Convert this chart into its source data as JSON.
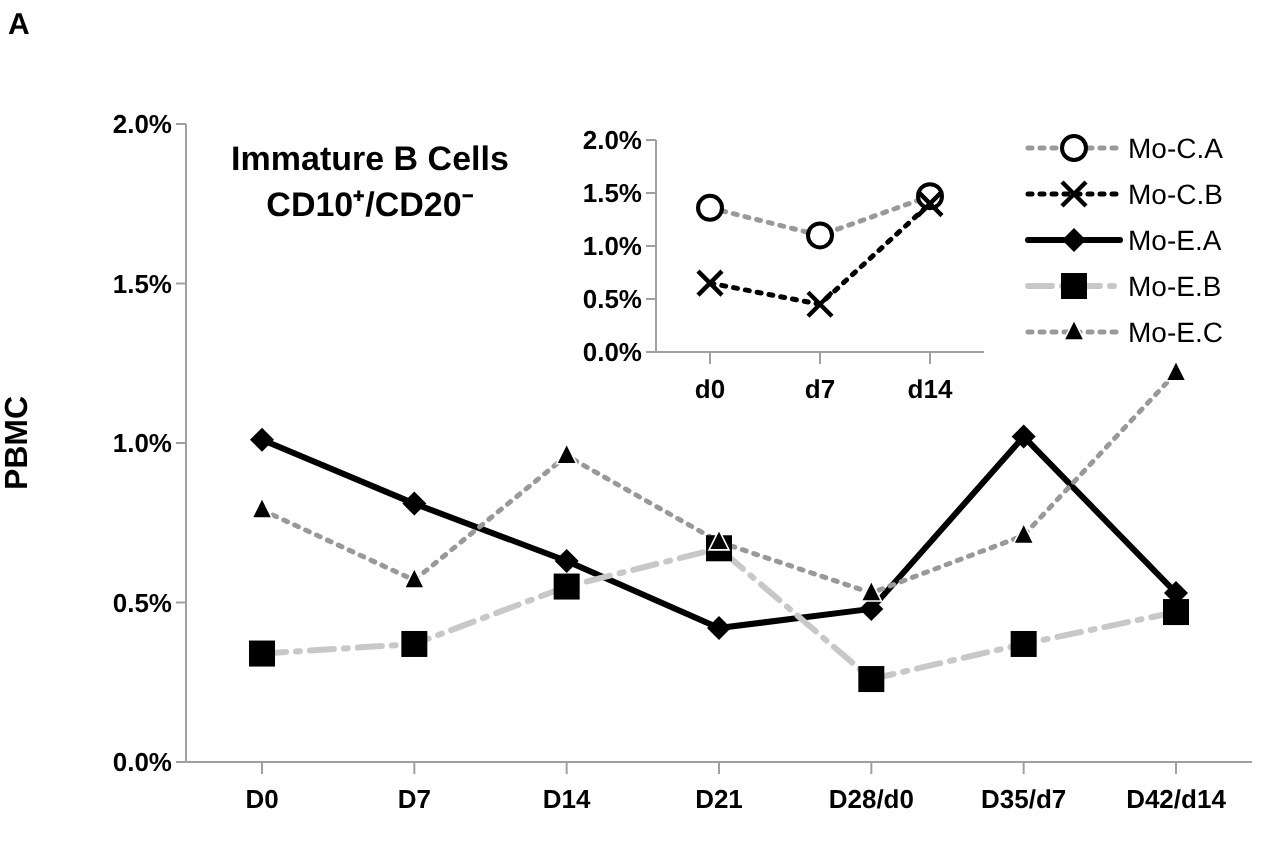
{
  "chart_data": [
    {
      "type": "line",
      "title": "Immature B Cells CD10⁺/CD20⁻",
      "ylabel": "PBMC",
      "annotations": [
        "A"
      ],
      "categories": [
        "D0",
        "D7",
        "D14",
        "D21",
        "D28/d0",
        "D35/d7",
        "D42/d14"
      ],
      "series": [
        {
          "name": "Mo-E.A",
          "color": "#000000",
          "marker": "diamond",
          "line_style": "solid",
          "values": [
            1.01,
            0.81,
            0.63,
            0.42,
            0.48,
            1.02,
            0.53
          ]
        },
        {
          "name": "Mo-E.B",
          "color": "#c8c8c8",
          "marker": "square",
          "line_style": "dashed",
          "values": [
            0.34,
            0.37,
            0.55,
            0.67,
            0.26,
            0.37,
            0.47
          ]
        },
        {
          "name": "Mo-E.C",
          "color": "#999999",
          "marker": "triangle",
          "line_style": "dotted",
          "values": [
            0.79,
            0.57,
            0.96,
            0.69,
            0.53,
            0.71,
            1.22
          ]
        }
      ],
      "ylim": [
        0,
        2
      ],
      "yticks": [
        {
          "value": 0,
          "label": "0.0%"
        },
        {
          "value": 0.5,
          "label": "0.5%"
        },
        {
          "value": 1,
          "label": "1.0%"
        },
        {
          "value": 1.5,
          "label": "1.5%"
        },
        {
          "value": 2,
          "label": "2.0%"
        }
      ],
      "grid": false,
      "legend": "top right"
    },
    {
      "type": "line",
      "categories": [
        "d0",
        "d7",
        "d14"
      ],
      "series": [
        {
          "name": "Mo-C.A",
          "color": "#999999",
          "marker": "circle",
          "line_style": "dotted",
          "values": [
            1.36,
            1.1,
            1.47
          ]
        },
        {
          "name": "Mo-C.B",
          "color": "#000000",
          "marker": "cross",
          "line_style": "dotted",
          "values": [
            0.65,
            0.45,
            1.4
          ]
        }
      ],
      "ylim": [
        0,
        2
      ],
      "yticks": [
        {
          "value": 0,
          "label": "0.0%"
        },
        {
          "value": 0.5,
          "label": "0.5%"
        },
        {
          "value": 1,
          "label": "1.0%"
        },
        {
          "value": 1.5,
          "label": "1.5%"
        },
        {
          "value": 2,
          "label": "2.0%"
        }
      ],
      "grid": false,
      "legend": "right"
    }
  ]
}
